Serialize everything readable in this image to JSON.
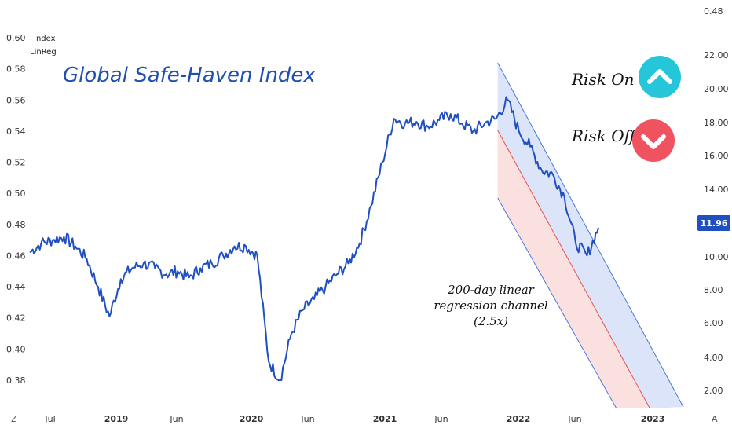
{
  "chart_data": {
    "type": "line",
    "title": "Global Safe-Haven Index",
    "legend": [
      "Index",
      "LinReg"
    ],
    "left_axis": {
      "ticks": [
        "0.60",
        "0.58",
        "0.56",
        "0.54",
        "0.52",
        "0.50",
        "0.48",
        "0.46",
        "0.44",
        "0.42",
        "0.40",
        "0.38"
      ],
      "range": [
        0.37,
        0.605
      ]
    },
    "right_axis": {
      "ticks": [
        "0.48",
        "22.00",
        "20.00",
        "18.00",
        "16.00",
        "14.00",
        "12.00",
        "10.00",
        "8.00",
        "6.00",
        "4.00",
        "2.00"
      ],
      "last_value": "11.96"
    },
    "x_ticks": [
      {
        "label": "Jul",
        "bold": false
      },
      {
        "label": "2019",
        "bold": true
      },
      {
        "label": "Jun",
        "bold": false
      },
      {
        "label": "2020",
        "bold": true
      },
      {
        "label": "Jun",
        "bold": false
      },
      {
        "label": "2021",
        "bold": true
      },
      {
        "label": "Jun",
        "bold": false
      },
      {
        "label": "2022",
        "bold": true
      },
      {
        "label": "Jun",
        "bold": false
      },
      {
        "label": "2023",
        "bold": true
      }
    ],
    "series": [
      {
        "name": "Index",
        "x": [
          "2018-06",
          "2018-07",
          "2018-08",
          "2018-09",
          "2018-10",
          "2018-11",
          "2018-12",
          "2019-01",
          "2019-02",
          "2019-03",
          "2019-04",
          "2019-05",
          "2019-06",
          "2019-07",
          "2019-08",
          "2019-09",
          "2019-10",
          "2019-11",
          "2019-12",
          "2020-01",
          "2020-02",
          "2020-03",
          "2020-04",
          "2020-05",
          "2020-06",
          "2020-07",
          "2020-08",
          "2020-09",
          "2020-10",
          "2020-11",
          "2020-12",
          "2021-01",
          "2021-02",
          "2021-03",
          "2021-04",
          "2021-05",
          "2021-06",
          "2021-07",
          "2021-08",
          "2021-09",
          "2021-10",
          "2021-11",
          "2021-12",
          "2022-01",
          "2022-02",
          "2022-03",
          "2022-04",
          "2022-05",
          "2022-06",
          "2022-07",
          "2022-08"
        ],
        "y": [
          0.462,
          0.468,
          0.47,
          0.472,
          0.466,
          0.458,
          0.44,
          0.421,
          0.445,
          0.452,
          0.455,
          0.452,
          0.448,
          0.45,
          0.446,
          0.452,
          0.455,
          0.46,
          0.466,
          0.466,
          0.46,
          0.392,
          0.38,
          0.41,
          0.425,
          0.432,
          0.44,
          0.448,
          0.455,
          0.468,
          0.492,
          0.52,
          0.548,
          0.545,
          0.546,
          0.543,
          0.547,
          0.551,
          0.545,
          0.54,
          0.545,
          0.548,
          0.56,
          0.54,
          0.53,
          0.515,
          0.512,
          0.498,
          0.468,
          0.46,
          0.478
        ]
      }
    ],
    "regression_channel": {
      "label": "200-day linear regression channel (2.5x)",
      "start": "2021-11",
      "end": "2023-03"
    },
    "annotations": [
      "Risk On",
      "Risk Off",
      "200-day linear",
      "regression channel",
      "(2.5x)"
    ],
    "colors": {
      "line": "#1f4fc0",
      "upper_fill": "#dbe4f8",
      "lower_fill": "#fbe0e0",
      "mid_line": "#e05555",
      "risk_on": "#26c6da",
      "risk_off": "#ef5360"
    },
    "corner_labels": {
      "left": "Z",
      "right": "A"
    }
  }
}
